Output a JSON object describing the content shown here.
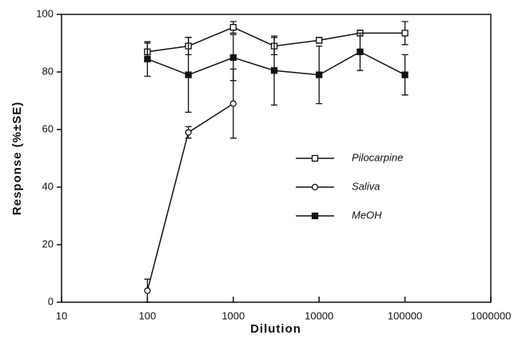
{
  "chart_data": {
    "type": "line",
    "xlabel": "Dilution",
    "ylabel": "Response  (%±SE)",
    "xscale": "log",
    "xlim": [
      10,
      1000000
    ],
    "ylim": [
      0,
      100
    ],
    "xticks": [
      10,
      100,
      1000,
      10000,
      100000,
      1000000
    ],
    "yticks": [
      0,
      20,
      40,
      60,
      80,
      100
    ],
    "series": [
      {
        "name": "Pilocarpine",
        "color": "#111111",
        "marker": "square-open",
        "x": [
          100,
          300,
          1000,
          3000,
          10000,
          30000,
          100000
        ],
        "values": [
          87,
          89,
          95.5,
          89,
          91,
          93.5,
          93.5
        ],
        "errors": [
          3,
          3,
          2,
          3,
          1,
          1,
          4
        ]
      },
      {
        "name": "Saliva",
        "color": "#111111",
        "marker": "circle-open",
        "x": [
          100,
          300,
          1000
        ],
        "values": [
          4,
          59,
          69
        ],
        "errors": [
          4,
          2,
          12
        ]
      },
      {
        "name": "MeOH",
        "color": "#111111",
        "marker": "square-filled",
        "x": [
          100,
          300,
          1000,
          3000,
          10000,
          30000,
          100000
        ],
        "values": [
          84.5,
          79,
          85,
          80.5,
          79,
          87,
          79
        ],
        "errors": [
          6,
          13,
          8,
          12,
          10,
          6.5,
          7
        ]
      }
    ]
  }
}
